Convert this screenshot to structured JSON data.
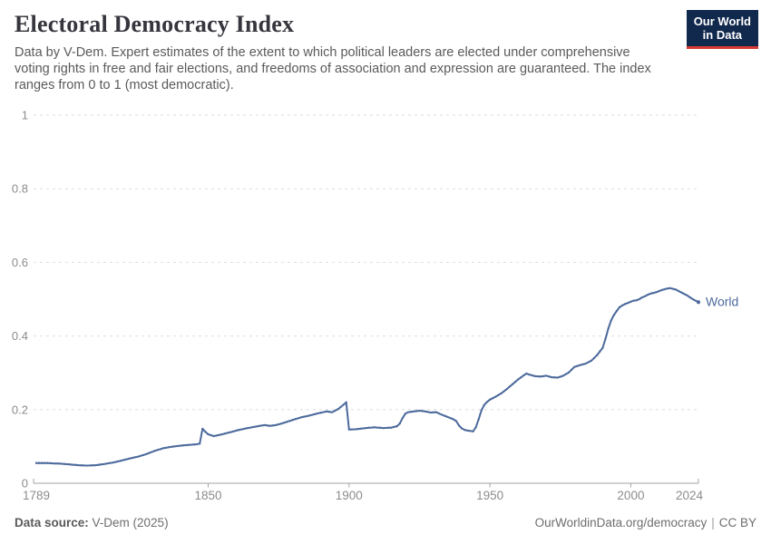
{
  "header": {
    "title": "Electoral Democracy Index",
    "subtitle": "Data by V-Dem. Expert estimates of the extent to which political leaders are elected under comprehensive voting rights in free and fair elections, and freedoms of association and expression are guaranteed. The index ranges from 0 to 1 (most democratic).",
    "logo": {
      "line1": "Our World",
      "line2": "in Data"
    }
  },
  "footer": {
    "source_label": "Data source:",
    "source_value": " V-Dem (2025)",
    "link": "OurWorldinData.org/democracy",
    "divider": "|",
    "license": "CC BY"
  },
  "colors": {
    "line_blue": "#4C6A9C",
    "logo_navy": "#12294e",
    "logo_red": "#d93a34",
    "grid": "#dedede",
    "axis": "#a3a3a3",
    "tick_label": "#8c8c8c",
    "title_text": "#35353d",
    "subtitle_text": "#5a5a5a"
  },
  "chart_data": {
    "type": "line",
    "title": "Electoral Democracy Index",
    "xlabel": "",
    "ylabel": "",
    "grid": "horizontal-dashed",
    "legend_position": "end-of-line",
    "x_axis": {
      "range": [
        1789,
        2024
      ],
      "ticks": [
        {
          "label": "1789",
          "year": 1789,
          "mark": "end",
          "dx": 0
        },
        {
          "label": "1850",
          "year": 1850,
          "mark": "down",
          "dx": 0
        },
        {
          "label": "1900",
          "year": 1900,
          "mark": "down",
          "dx": 0
        },
        {
          "label": "1950",
          "year": 1950,
          "mark": "down",
          "dx": 0
        },
        {
          "label": "2000",
          "year": 2000,
          "mark": "down",
          "dx": 0
        },
        {
          "label": "2024",
          "year": 2024,
          "mark": "end",
          "dx": -10
        }
      ]
    },
    "y_axis": {
      "range": [
        0,
        1
      ],
      "ticks": [
        {
          "label": "1",
          "value": 1.0
        },
        {
          "label": "0.8",
          "value": 0.8
        },
        {
          "label": "0.6",
          "value": 0.6
        },
        {
          "label": "0.4",
          "value": 0.4
        },
        {
          "label": "0.2",
          "value": 0.2
        },
        {
          "label": "0",
          "value": 0.0
        }
      ]
    },
    "series": [
      {
        "name": "World",
        "color": "#4C6A9C",
        "points": [
          [
            1789,
            0.055
          ],
          [
            1792,
            0.055
          ],
          [
            1795,
            0.054
          ],
          [
            1798,
            0.053
          ],
          [
            1801,
            0.051
          ],
          [
            1804,
            0.049
          ],
          [
            1807,
            0.048
          ],
          [
            1810,
            0.049
          ],
          [
            1813,
            0.052
          ],
          [
            1816,
            0.056
          ],
          [
            1819,
            0.061
          ],
          [
            1822,
            0.067
          ],
          [
            1825,
            0.072
          ],
          [
            1828,
            0.079
          ],
          [
            1831,
            0.088
          ],
          [
            1834,
            0.095
          ],
          [
            1837,
            0.099
          ],
          [
            1840,
            0.102
          ],
          [
            1843,
            0.104
          ],
          [
            1846,
            0.106
          ],
          [
            1847,
            0.108
          ],
          [
            1848,
            0.148
          ],
          [
            1849,
            0.14
          ],
          [
            1850,
            0.133
          ],
          [
            1852,
            0.128
          ],
          [
            1855,
            0.133
          ],
          [
            1858,
            0.139
          ],
          [
            1861,
            0.145
          ],
          [
            1864,
            0.15
          ],
          [
            1867,
            0.154
          ],
          [
            1870,
            0.158
          ],
          [
            1872,
            0.156
          ],
          [
            1874,
            0.158
          ],
          [
            1876,
            0.162
          ],
          [
            1878,
            0.167
          ],
          [
            1880,
            0.172
          ],
          [
            1883,
            0.179
          ],
          [
            1886,
            0.184
          ],
          [
            1889,
            0.19
          ],
          [
            1892,
            0.195
          ],
          [
            1894,
            0.193
          ],
          [
            1896,
            0.201
          ],
          [
            1898,
            0.213
          ],
          [
            1899,
            0.22
          ],
          [
            1900,
            0.146
          ],
          [
            1903,
            0.147
          ],
          [
            1906,
            0.15
          ],
          [
            1909,
            0.152
          ],
          [
            1912,
            0.15
          ],
          [
            1915,
            0.151
          ],
          [
            1917,
            0.155
          ],
          [
            1918,
            0.162
          ],
          [
            1919,
            0.177
          ],
          [
            1920,
            0.189
          ],
          [
            1921,
            0.193
          ],
          [
            1923,
            0.195
          ],
          [
            1925,
            0.197
          ],
          [
            1927,
            0.195
          ],
          [
            1929,
            0.192
          ],
          [
            1931,
            0.193
          ],
          [
            1933,
            0.186
          ],
          [
            1935,
            0.18
          ],
          [
            1937,
            0.174
          ],
          [
            1938,
            0.169
          ],
          [
            1939,
            0.157
          ],
          [
            1940,
            0.149
          ],
          [
            1941,
            0.145
          ],
          [
            1942,
            0.143
          ],
          [
            1943,
            0.142
          ],
          [
            1944,
            0.141
          ],
          [
            1945,
            0.152
          ],
          [
            1946,
            0.174
          ],
          [
            1947,
            0.198
          ],
          [
            1948,
            0.213
          ],
          [
            1949,
            0.221
          ],
          [
            1950,
            0.227
          ],
          [
            1952,
            0.235
          ],
          [
            1954,
            0.244
          ],
          [
            1956,
            0.256
          ],
          [
            1958,
            0.269
          ],
          [
            1960,
            0.282
          ],
          [
            1962,
            0.293
          ],
          [
            1963,
            0.298
          ],
          [
            1964,
            0.295
          ],
          [
            1966,
            0.291
          ],
          [
            1968,
            0.29
          ],
          [
            1970,
            0.292
          ],
          [
            1972,
            0.288
          ],
          [
            1974,
            0.287
          ],
          [
            1976,
            0.292
          ],
          [
            1978,
            0.301
          ],
          [
            1980,
            0.316
          ],
          [
            1982,
            0.321
          ],
          [
            1984,
            0.325
          ],
          [
            1986,
            0.333
          ],
          [
            1988,
            0.348
          ],
          [
            1990,
            0.368
          ],
          [
            1991,
            0.392
          ],
          [
            1992,
            0.42
          ],
          [
            1993,
            0.442
          ],
          [
            1994,
            0.457
          ],
          [
            1995,
            0.468
          ],
          [
            1996,
            0.478
          ],
          [
            1997,
            0.483
          ],
          [
            1998,
            0.487
          ],
          [
            1999,
            0.49
          ],
          [
            2000,
            0.493
          ],
          [
            2001,
            0.496
          ],
          [
            2002,
            0.497
          ],
          [
            2003,
            0.5
          ],
          [
            2004,
            0.505
          ],
          [
            2005,
            0.508
          ],
          [
            2006,
            0.512
          ],
          [
            2007,
            0.515
          ],
          [
            2008,
            0.517
          ],
          [
            2009,
            0.519
          ],
          [
            2010,
            0.522
          ],
          [
            2011,
            0.525
          ],
          [
            2012,
            0.527
          ],
          [
            2013,
            0.529
          ],
          [
            2014,
            0.53
          ],
          [
            2015,
            0.528
          ],
          [
            2016,
            0.526
          ],
          [
            2017,
            0.522
          ],
          [
            2018,
            0.518
          ],
          [
            2019,
            0.514
          ],
          [
            2020,
            0.51
          ],
          [
            2021,
            0.505
          ],
          [
            2022,
            0.5
          ],
          [
            2023,
            0.496
          ],
          [
            2024,
            0.492
          ]
        ]
      }
    ]
  }
}
